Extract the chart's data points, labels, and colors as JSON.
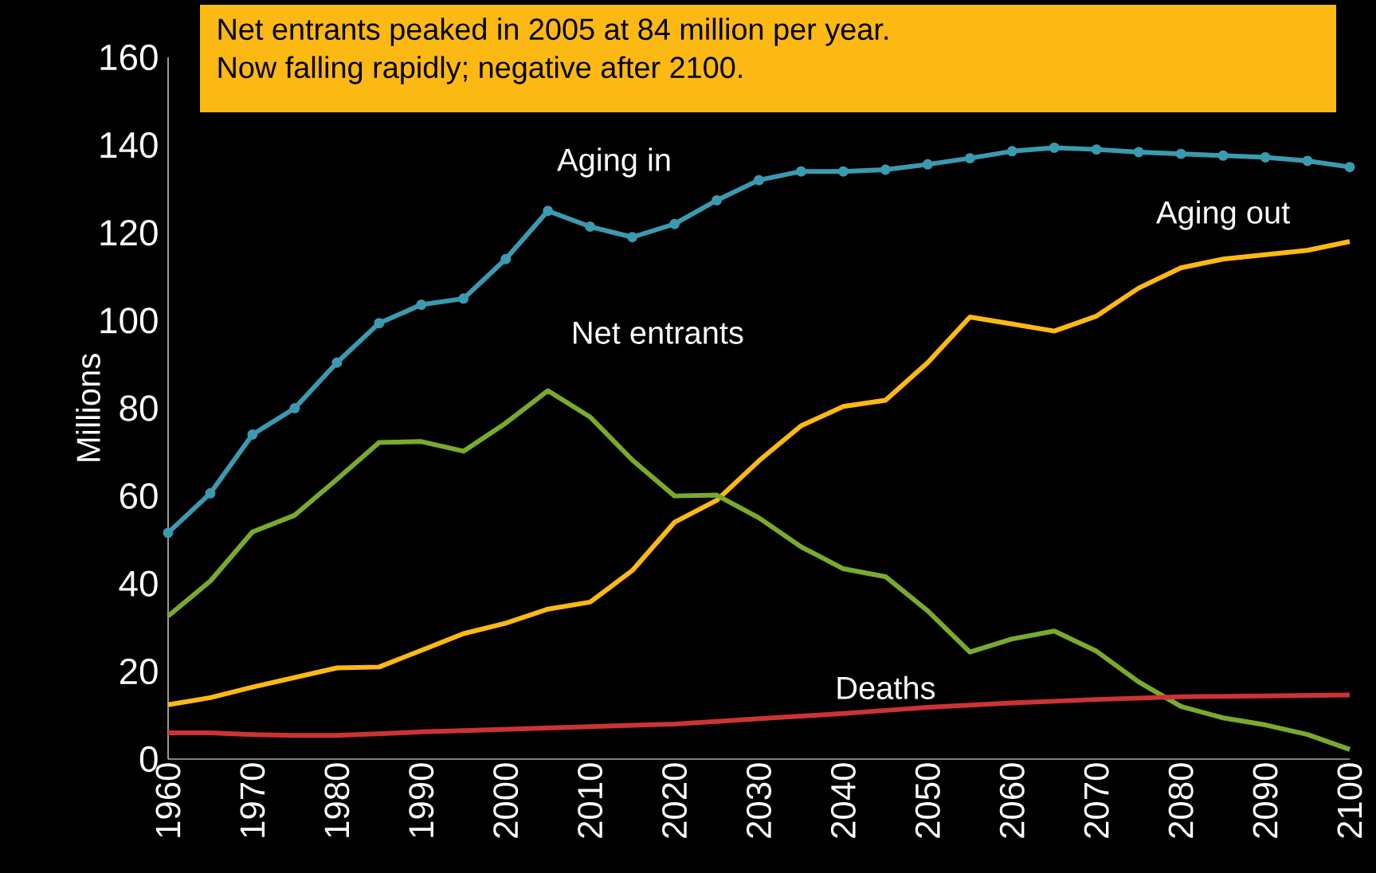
{
  "chart_data": {
    "type": "line",
    "ylabel": "Millions",
    "annotations": [
      "Net entrants peaked in 2005 at 84 million per year.",
      "Now falling rapidly;  negative after 2100."
    ],
    "x": [
      1960,
      1965,
      1970,
      1975,
      1980,
      1985,
      1990,
      1995,
      2000,
      2005,
      2010,
      2015,
      2020,
      2025,
      2030,
      2035,
      2040,
      2045,
      2050,
      2055,
      2060,
      2065,
      2070,
      2075,
      2080,
      2085,
      2090,
      2095,
      2100
    ],
    "xlim": [
      1960,
      2100
    ],
    "xticks": [
      1960,
      1970,
      1980,
      1990,
      2000,
      2010,
      2020,
      2030,
      2040,
      2050,
      2060,
      2070,
      2080,
      2090,
      2100
    ],
    "ylim": [
      0,
      160
    ],
    "yticks": [
      0,
      20,
      40,
      60,
      80,
      100,
      120,
      140,
      160
    ],
    "grid": false,
    "series": [
      {
        "name": "Aging in",
        "color": "#3a9ab0",
        "marker": "circle",
        "values": [
          51.6,
          60.6,
          74,
          80,
          90.4,
          99.4,
          103.6,
          105,
          114,
          125,
          121.4,
          119,
          122,
          127.4,
          132,
          134,
          134,
          134.4,
          135.6,
          137,
          138.6,
          139.4,
          139,
          138.4,
          138,
          137.6,
          137.2,
          136.4,
          135
        ]
      },
      {
        "name": "Aging out",
        "color": "#fdb913",
        "values": [
          12.4,
          14,
          16.4,
          18.6,
          20.8,
          21,
          24.8,
          28.6,
          31,
          34.2,
          35.8,
          43,
          54,
          59,
          68,
          76,
          80.4,
          81.8,
          90.4,
          100.8,
          99.2,
          97.6,
          101,
          107.4,
          112,
          114,
          115,
          116,
          118
        ]
      },
      {
        "name": "Net entrants",
        "color": "#7aaa2c",
        "values": [
          32.6,
          40.6,
          51.8,
          55.6,
          63.8,
          72.2,
          72.4,
          70.2,
          76.6,
          84,
          78,
          68.2,
          60,
          60.2,
          55,
          48.4,
          43.4,
          41.6,
          33.8,
          24.4,
          27.4,
          29.2,
          24.6,
          17.6,
          12,
          9.4,
          7.8,
          5.6,
          2.2
        ]
      },
      {
        "name": "Deaths",
        "color": "#cc3333",
        "values": [
          6,
          6,
          5.6,
          5.4,
          5.4,
          5.8,
          6.2,
          6.5,
          6.8,
          7.1,
          7.4,
          7.7,
          8,
          8.6,
          9.2,
          9.8,
          10.4,
          11.1,
          11.8,
          12.3,
          12.8,
          13.2,
          13.6,
          13.9,
          14.2,
          14.3,
          14.4,
          14.5,
          14.6
        ]
      }
    ]
  }
}
